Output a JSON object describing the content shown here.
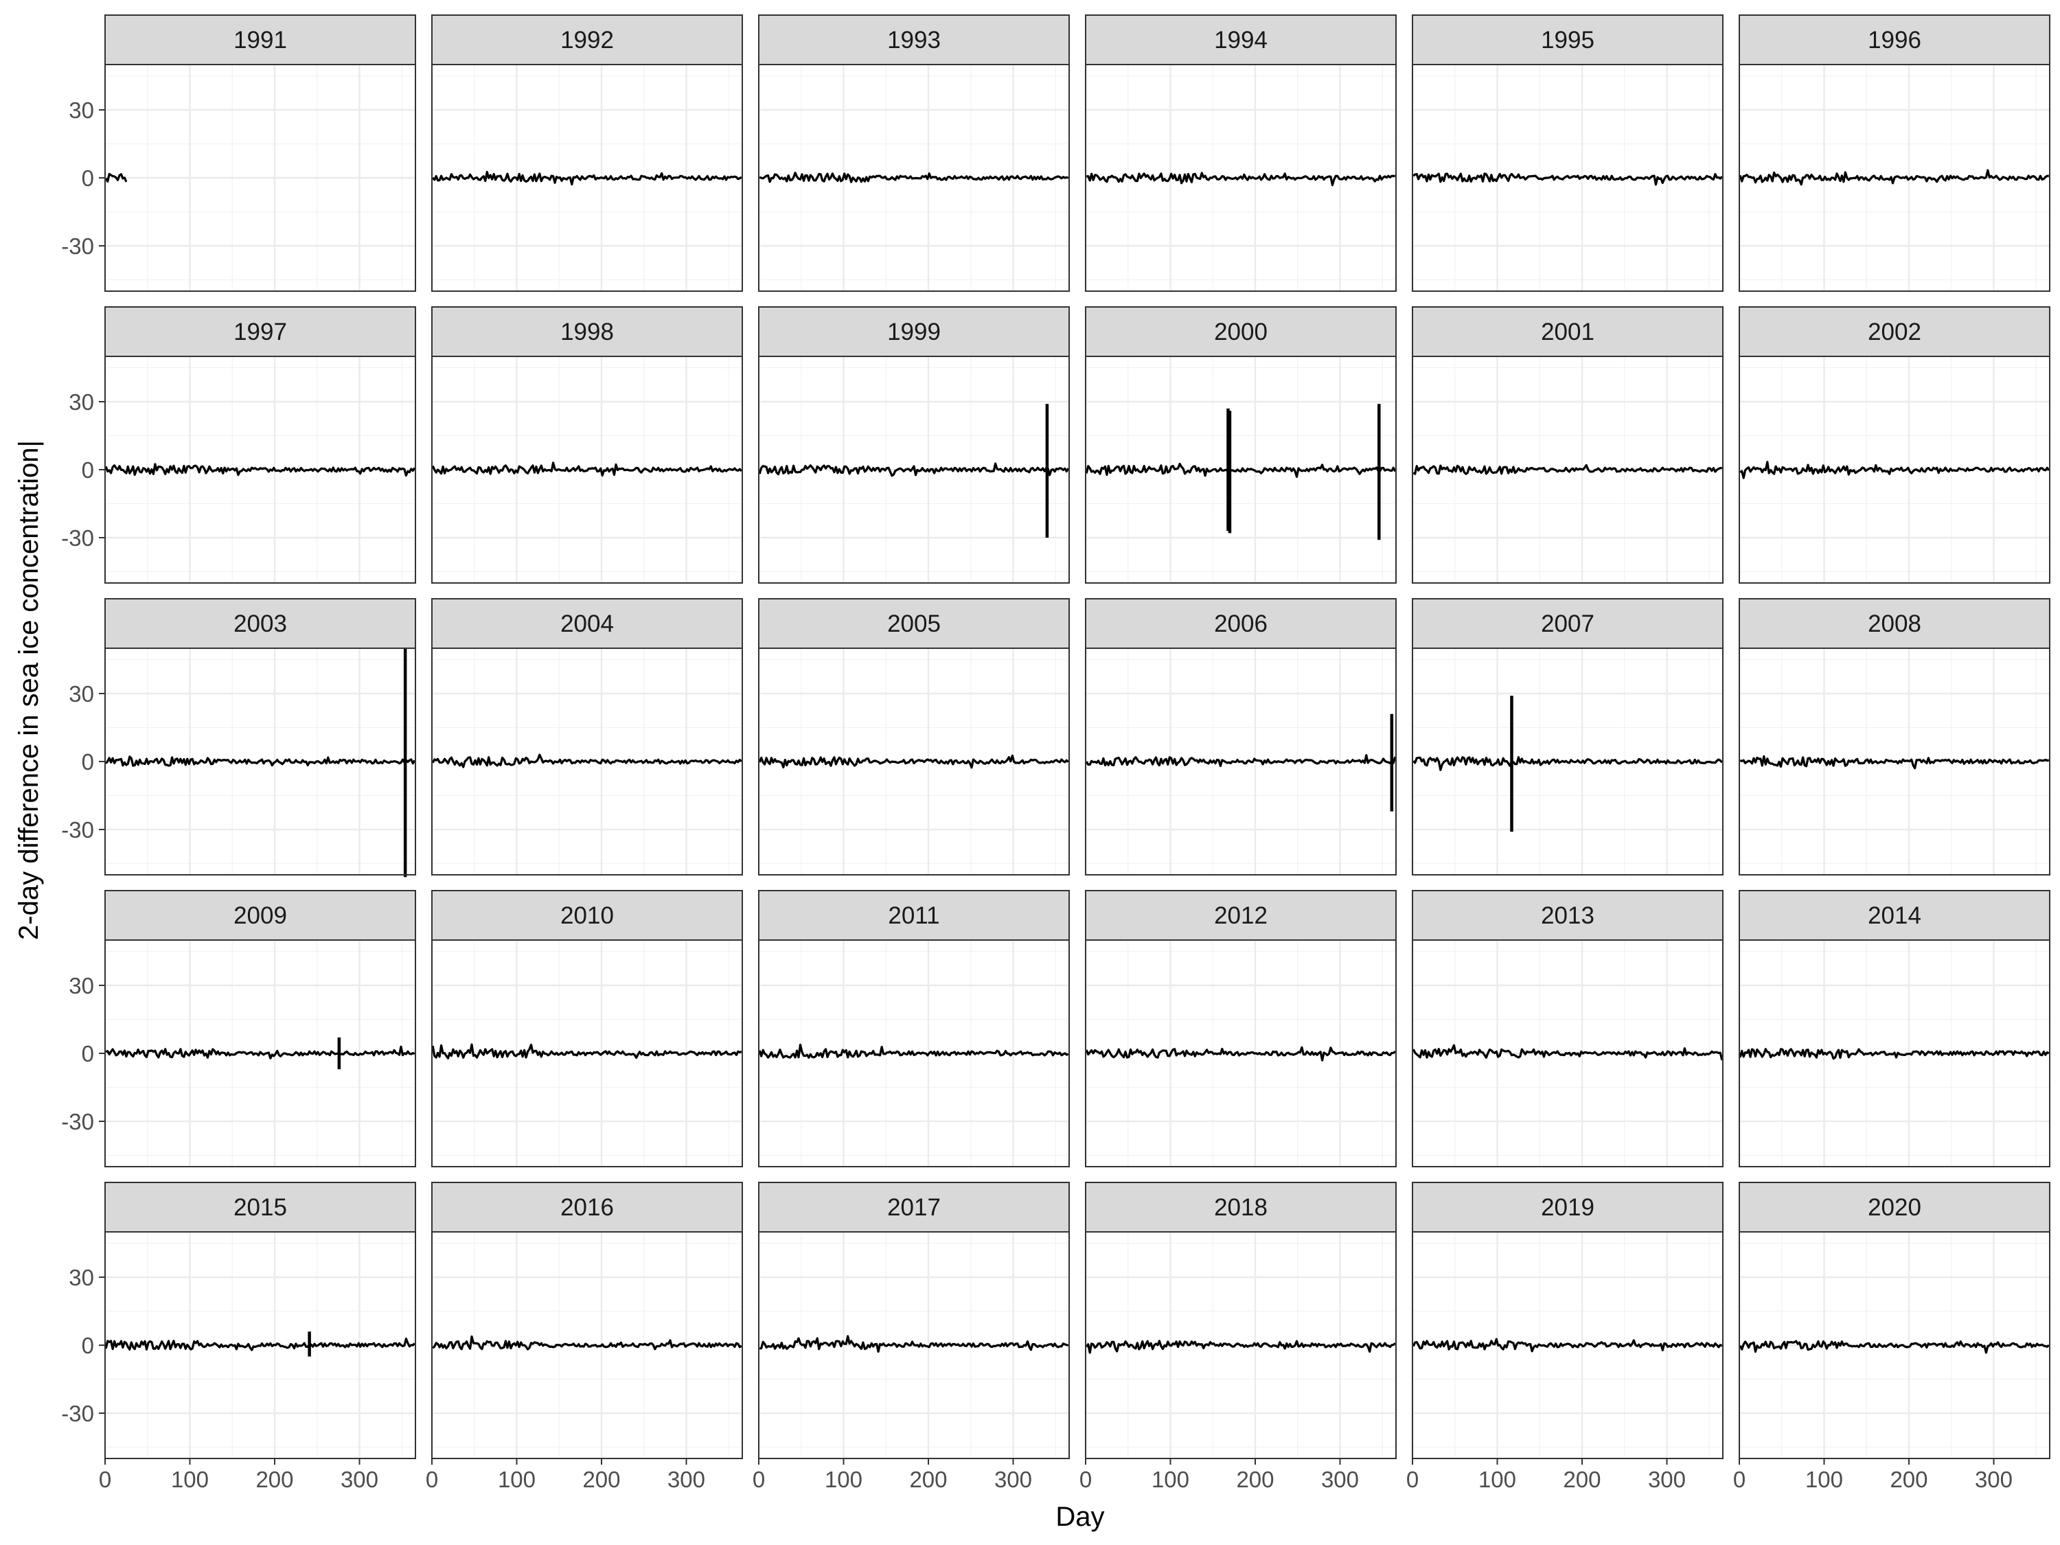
{
  "chart_data": {
    "type": "line",
    "layout": "facet grid, 5 rows x 6 columns",
    "title": "",
    "xlabel": "Day",
    "ylabel": "2-day difference in sea ice concentration|",
    "xlim": [
      0,
      366
    ],
    "ylim": [
      -50,
      50
    ],
    "x_ticks": [
      0,
      100,
      200,
      300
    ],
    "x_tick_labels": [
      "0",
      "100",
      "200",
      "300"
    ],
    "y_ticks": [
      -30,
      0,
      30
    ],
    "y_tick_labels": [
      "-30",
      "0",
      "30"
    ],
    "grid": true,
    "legend": "none",
    "line_color": "#000000",
    "strip_color": "#d9d9d9",
    "facets": [
      {
        "label": "1991",
        "day_range": [
          1,
          26
        ],
        "spikes": []
      },
      {
        "label": "1992",
        "day_range": [
          1,
          366
        ],
        "spikes": []
      },
      {
        "label": "1993",
        "day_range": [
          1,
          365
        ],
        "spikes": []
      },
      {
        "label": "1994",
        "day_range": [
          1,
          365
        ],
        "spikes": []
      },
      {
        "label": "1995",
        "day_range": [
          1,
          365
        ],
        "spikes": []
      },
      {
        "label": "1996",
        "day_range": [
          1,
          366
        ],
        "spikes": []
      },
      {
        "label": "1997",
        "day_range": [
          1,
          365
        ],
        "spikes": []
      },
      {
        "label": "1998",
        "day_range": [
          1,
          365
        ],
        "spikes": []
      },
      {
        "label": "1999",
        "day_range": [
          1,
          365
        ],
        "spikes": [
          {
            "day": 340,
            "min": -30,
            "max": 29
          }
        ]
      },
      {
        "label": "2000",
        "day_range": [
          1,
          366
        ],
        "spikes": [
          {
            "day": 168,
            "min": -27,
            "max": 27
          },
          {
            "day": 170,
            "min": -28,
            "max": 26
          },
          {
            "day": 346,
            "min": -31,
            "max": 29
          }
        ]
      },
      {
        "label": "2001",
        "day_range": [
          1,
          365
        ],
        "spikes": []
      },
      {
        "label": "2002",
        "day_range": [
          1,
          365
        ],
        "spikes": []
      },
      {
        "label": "2003",
        "day_range": [
          1,
          365
        ],
        "spikes": [
          {
            "day": 354,
            "min": -51,
            "max": 51
          }
        ]
      },
      {
        "label": "2004",
        "day_range": [
          1,
          366
        ],
        "spikes": []
      },
      {
        "label": "2005",
        "day_range": [
          1,
          365
        ],
        "spikes": []
      },
      {
        "label": "2006",
        "day_range": [
          1,
          365
        ],
        "spikes": [
          {
            "day": 361,
            "min": -22,
            "max": 21
          }
        ]
      },
      {
        "label": "2007",
        "day_range": [
          1,
          365
        ],
        "spikes": [
          {
            "day": 117,
            "min": -31,
            "max": 29
          }
        ]
      },
      {
        "label": "2008",
        "day_range": [
          1,
          366
        ],
        "spikes": []
      },
      {
        "label": "2009",
        "day_range": [
          1,
          365
        ],
        "spikes": [
          {
            "day": 276,
            "min": -7,
            "max": 7
          }
        ]
      },
      {
        "label": "2010",
        "day_range": [
          1,
          365
        ],
        "spikes": []
      },
      {
        "label": "2011",
        "day_range": [
          1,
          365
        ],
        "spikes": []
      },
      {
        "label": "2012",
        "day_range": [
          1,
          366
        ],
        "spikes": []
      },
      {
        "label": "2013",
        "day_range": [
          1,
          365
        ],
        "spikes": []
      },
      {
        "label": "2014",
        "day_range": [
          1,
          365
        ],
        "spikes": []
      },
      {
        "label": "2015",
        "day_range": [
          1,
          365
        ],
        "spikes": [
          {
            "day": 241,
            "min": -5,
            "max": 6
          }
        ]
      },
      {
        "label": "2016",
        "day_range": [
          1,
          366
        ],
        "spikes": []
      },
      {
        "label": "2017",
        "day_range": [
          1,
          365
        ],
        "spikes": []
      },
      {
        "label": "2018",
        "day_range": [
          1,
          365
        ],
        "spikes": []
      },
      {
        "label": "2019",
        "day_range": [
          1,
          365
        ],
        "spikes": []
      },
      {
        "label": "2020",
        "day_range": [
          1,
          366
        ],
        "spikes": []
      }
    ]
  }
}
